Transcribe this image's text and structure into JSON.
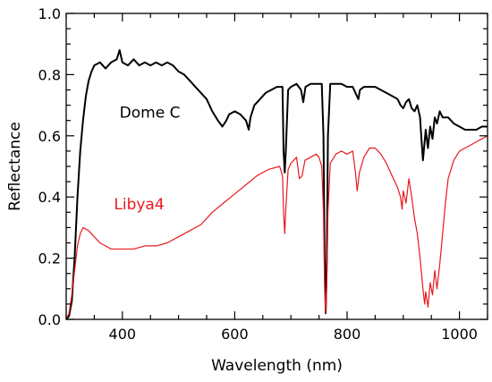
{
  "chart_data": {
    "type": "line",
    "title": "",
    "xlabel": "Wavelength (nm)",
    "ylabel": "Reflectance",
    "xlim": [
      300,
      1050
    ],
    "ylim": [
      0.0,
      1.0
    ],
    "x_ticks": [
      400,
      600,
      800,
      1000
    ],
    "y_ticks": [
      "0.0",
      "0.2",
      "0.4",
      "0.6",
      "0.8",
      "1.0"
    ],
    "grid": false,
    "legend": "inline labels",
    "series": [
      {
        "name": "Dome C",
        "color": "#000000",
        "points": [
          [
            300,
            0.0
          ],
          [
            305,
            0.01
          ],
          [
            310,
            0.06
          ],
          [
            315,
            0.2
          ],
          [
            320,
            0.4
          ],
          [
            325,
            0.55
          ],
          [
            330,
            0.65
          ],
          [
            335,
            0.73
          ],
          [
            340,
            0.78
          ],
          [
            345,
            0.81
          ],
          [
            350,
            0.83
          ],
          [
            360,
            0.84
          ],
          [
            370,
            0.82
          ],
          [
            380,
            0.84
          ],
          [
            390,
            0.85
          ],
          [
            395,
            0.88
          ],
          [
            400,
            0.84
          ],
          [
            410,
            0.83
          ],
          [
            420,
            0.85
          ],
          [
            430,
            0.83
          ],
          [
            440,
            0.84
          ],
          [
            450,
            0.83
          ],
          [
            460,
            0.84
          ],
          [
            470,
            0.83
          ],
          [
            480,
            0.84
          ],
          [
            490,
            0.83
          ],
          [
            500,
            0.81
          ],
          [
            510,
            0.8
          ],
          [
            520,
            0.78
          ],
          [
            530,
            0.76
          ],
          [
            540,
            0.74
          ],
          [
            550,
            0.72
          ],
          [
            560,
            0.68
          ],
          [
            570,
            0.65
          ],
          [
            578,
            0.63
          ],
          [
            585,
            0.65
          ],
          [
            590,
            0.67
          ],
          [
            600,
            0.68
          ],
          [
            610,
            0.67
          ],
          [
            620,
            0.65
          ],
          [
            625,
            0.62
          ],
          [
            628,
            0.66
          ],
          [
            635,
            0.7
          ],
          [
            645,
            0.72
          ],
          [
            655,
            0.74
          ],
          [
            665,
            0.75
          ],
          [
            675,
            0.76
          ],
          [
            685,
            0.76
          ],
          [
            687,
            0.55
          ],
          [
            689,
            0.48
          ],
          [
            691,
            0.55
          ],
          [
            695,
            0.75
          ],
          [
            700,
            0.76
          ],
          [
            710,
            0.77
          ],
          [
            718,
            0.75
          ],
          [
            722,
            0.71
          ],
          [
            726,
            0.76
          ],
          [
            735,
            0.77
          ],
          [
            745,
            0.77
          ],
          [
            755,
            0.77
          ],
          [
            758,
            0.6
          ],
          [
            760,
            0.2
          ],
          [
            762,
            0.02
          ],
          [
            764,
            0.2
          ],
          [
            766,
            0.6
          ],
          [
            770,
            0.77
          ],
          [
            780,
            0.77
          ],
          [
            790,
            0.77
          ],
          [
            800,
            0.76
          ],
          [
            810,
            0.76
          ],
          [
            815,
            0.74
          ],
          [
            820,
            0.72
          ],
          [
            823,
            0.75
          ],
          [
            830,
            0.76
          ],
          [
            840,
            0.76
          ],
          [
            850,
            0.76
          ],
          [
            860,
            0.75
          ],
          [
            870,
            0.74
          ],
          [
            880,
            0.73
          ],
          [
            890,
            0.72
          ],
          [
            895,
            0.7
          ],
          [
            900,
            0.69
          ],
          [
            905,
            0.71
          ],
          [
            910,
            0.72
          ],
          [
            915,
            0.69
          ],
          [
            920,
            0.68
          ],
          [
            925,
            0.7
          ],
          [
            930,
            0.66
          ],
          [
            932,
            0.6
          ],
          [
            935,
            0.52
          ],
          [
            938,
            0.58
          ],
          [
            940,
            0.62
          ],
          [
            944,
            0.56
          ],
          [
            948,
            0.63
          ],
          [
            952,
            0.59
          ],
          [
            956,
            0.66
          ],
          [
            960,
            0.64
          ],
          [
            965,
            0.68
          ],
          [
            970,
            0.66
          ],
          [
            980,
            0.66
          ],
          [
            990,
            0.64
          ],
          [
            1000,
            0.63
          ],
          [
            1010,
            0.62
          ],
          [
            1020,
            0.62
          ],
          [
            1030,
            0.62
          ],
          [
            1040,
            0.63
          ],
          [
            1050,
            0.63
          ]
        ]
      },
      {
        "name": "Libya4",
        "color": "#e8191e",
        "points": [
          [
            300,
            0.0
          ],
          [
            305,
            0.02
          ],
          [
            310,
            0.08
          ],
          [
            315,
            0.16
          ],
          [
            320,
            0.24
          ],
          [
            325,
            0.28
          ],
          [
            330,
            0.3
          ],
          [
            340,
            0.29
          ],
          [
            350,
            0.27
          ],
          [
            360,
            0.25
          ],
          [
            370,
            0.24
          ],
          [
            380,
            0.23
          ],
          [
            400,
            0.23
          ],
          [
            420,
            0.23
          ],
          [
            440,
            0.24
          ],
          [
            460,
            0.24
          ],
          [
            480,
            0.25
          ],
          [
            500,
            0.27
          ],
          [
            520,
            0.29
          ],
          [
            540,
            0.31
          ],
          [
            560,
            0.35
          ],
          [
            580,
            0.38
          ],
          [
            600,
            0.41
          ],
          [
            620,
            0.44
          ],
          [
            640,
            0.47
          ],
          [
            660,
            0.49
          ],
          [
            680,
            0.5
          ],
          [
            685,
            0.47
          ],
          [
            687,
            0.35
          ],
          [
            689,
            0.28
          ],
          [
            691,
            0.36
          ],
          [
            695,
            0.49
          ],
          [
            700,
            0.51
          ],
          [
            710,
            0.53
          ],
          [
            715,
            0.46
          ],
          [
            720,
            0.47
          ],
          [
            725,
            0.52
          ],
          [
            735,
            0.53
          ],
          [
            745,
            0.54
          ],
          [
            750,
            0.53
          ],
          [
            755,
            0.5
          ],
          [
            758,
            0.35
          ],
          [
            760,
            0.1
          ],
          [
            762,
            0.02
          ],
          [
            764,
            0.12
          ],
          [
            766,
            0.35
          ],
          [
            770,
            0.51
          ],
          [
            780,
            0.54
          ],
          [
            790,
            0.55
          ],
          [
            800,
            0.54
          ],
          [
            810,
            0.55
          ],
          [
            815,
            0.48
          ],
          [
            818,
            0.42
          ],
          [
            822,
            0.48
          ],
          [
            830,
            0.53
          ],
          [
            840,
            0.56
          ],
          [
            850,
            0.56
          ],
          [
            860,
            0.54
          ],
          [
            870,
            0.51
          ],
          [
            880,
            0.47
          ],
          [
            890,
            0.43
          ],
          [
            895,
            0.4
          ],
          [
            898,
            0.36
          ],
          [
            900,
            0.42
          ],
          [
            905,
            0.38
          ],
          [
            910,
            0.46
          ],
          [
            915,
            0.4
          ],
          [
            920,
            0.33
          ],
          [
            925,
            0.28
          ],
          [
            930,
            0.2
          ],
          [
            935,
            0.1
          ],
          [
            938,
            0.05
          ],
          [
            940,
            0.09
          ],
          [
            944,
            0.04
          ],
          [
            948,
            0.12
          ],
          [
            952,
            0.08
          ],
          [
            956,
            0.16
          ],
          [
            960,
            0.1
          ],
          [
            965,
            0.18
          ],
          [
            970,
            0.28
          ],
          [
            975,
            0.38
          ],
          [
            980,
            0.46
          ],
          [
            990,
            0.52
          ],
          [
            1000,
            0.55
          ],
          [
            1010,
            0.56
          ],
          [
            1020,
            0.57
          ],
          [
            1030,
            0.58
          ],
          [
            1040,
            0.59
          ],
          [
            1050,
            0.6
          ]
        ]
      }
    ]
  }
}
